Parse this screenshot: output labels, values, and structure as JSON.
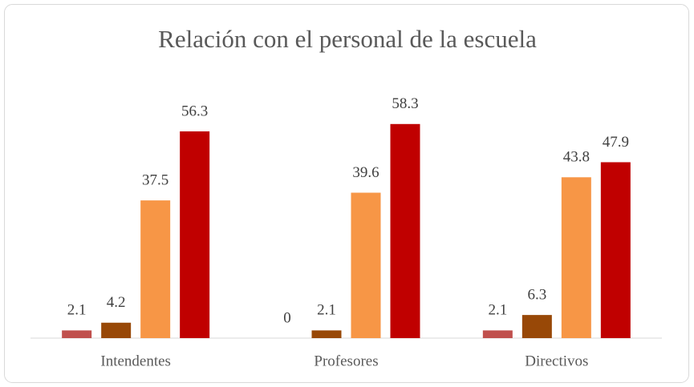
{
  "chart_data": {
    "type": "bar",
    "title": "Relación con el personal de la escuela",
    "categories": [
      "Intendentes",
      "Profesores",
      "Directivos"
    ],
    "series": [
      {
        "color": "#c0504d",
        "values": [
          2.1,
          0,
          2.1
        ]
      },
      {
        "color": "#984807",
        "values": [
          4.2,
          2.1,
          6.3
        ]
      },
      {
        "color": "#f79646",
        "values": [
          37.5,
          39.6,
          43.8
        ]
      },
      {
        "color": "#c00000",
        "values": [
          56.3,
          58.3,
          47.9
        ]
      }
    ],
    "ylim": [
      0,
      60
    ]
  }
}
